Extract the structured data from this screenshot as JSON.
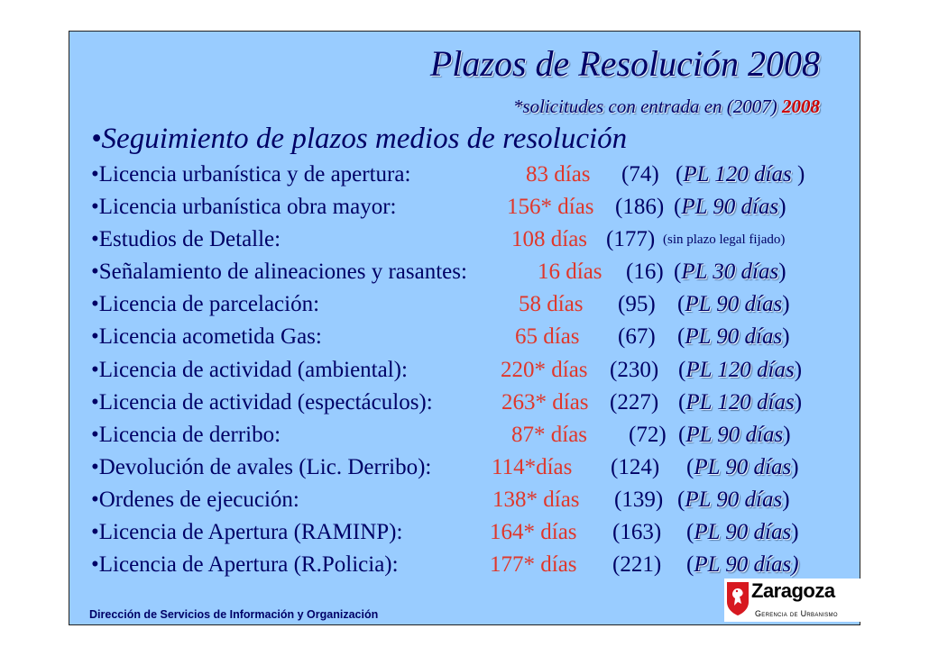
{
  "title": "Plazos de Resolución 2008",
  "subtitle": {
    "text": "*solicitudes con entrada en (2007) ",
    "year": "2008"
  },
  "heading": "•Seguimiento de plazos medios de resolución",
  "rows": [
    {
      "label": "•Licencia urbanística y de apertura:",
      "days": "83 días",
      "prev": "(74)",
      "plazo_open": "(",
      "plazo": "PL 120 días",
      "plazo_close": " )"
    },
    {
      "label": "•Licencia urbanística obra mayor:",
      "days": "156* días",
      "prev": "(186)",
      "plazo_open": "(",
      "plazo": "PL  90 días",
      "plazo_close": ")"
    },
    {
      "label": "•Estudios de Detalle:",
      "days": "108 días",
      "prev": "(177)",
      "note": "(sin plazo legal fijado)"
    },
    {
      "label": "•Señalamiento de alineaciones y rasantes:",
      "days": "16  días",
      "prev": "(16)",
      "plazo_open": "(",
      "plazo": "PL 30 días",
      "plazo_close": ")"
    },
    {
      "label": "•Licencia de parcelación:",
      "days": "58  días",
      "prev": "(95)",
      "plazo_open": "(",
      "plazo": "PL  90 días",
      "plazo_close": ")"
    },
    {
      "label": "•Licencia acometida Gas:",
      "days": "65  días",
      "prev": "(67)",
      "plazo_open": "(",
      "plazo": "PL  90 días",
      "plazo_close": ")"
    },
    {
      "label": "•Licencia de actividad (ambiental):",
      "days": "220* días",
      "prev": "(230)",
      "plazo_open": "(",
      "plazo": "PL 120 días",
      "plazo_close": ")"
    },
    {
      "label": "•Licencia de actividad (espectáculos):",
      "days": "263* días",
      "prev": "(227)",
      "plazo_open": "(",
      "plazo": "PL 120 días",
      "plazo_close": ")"
    },
    {
      "label": "•Licencia de derribo:",
      "days": "87* días",
      "prev": "(72)",
      "plazo_open": "(",
      "plazo": "PL  90 días",
      "plazo_close": ")"
    },
    {
      "label": "•Devolución de avales (Lic. Derribo):",
      "days": "114*días",
      "prev": "(124)",
      "plazo_open": "(",
      "plazo": "PL 90 días",
      "plazo_close": ")"
    },
    {
      "label": "•Ordenes de ejecución:",
      "days": "138* días",
      "prev": "(139)",
      "plazo_open": "(",
      "plazo": "PL  90 días",
      "plazo_close": ")"
    },
    {
      "label": "•Licencia de Apertura (RAMINP):",
      "days": "164* días",
      "prev": "(163)",
      "plazo_open": "(",
      "plazo": "PL 90 días",
      "plazo_close": ")"
    },
    {
      "label": "•Licencia de Apertura (R.Policia):",
      "days": "177* días",
      "prev": "(221)",
      "plazo_open": "(",
      "plazo": "PL 90 días)",
      "plazo_close": ""
    }
  ],
  "footer": "Dirección de Servicios de  Información y Organización",
  "logo": {
    "brand": "Zaragoza",
    "sub": "Gerencia de Urbanismo",
    "icon": "lion-shield-icon",
    "color": "#d71920"
  }
}
